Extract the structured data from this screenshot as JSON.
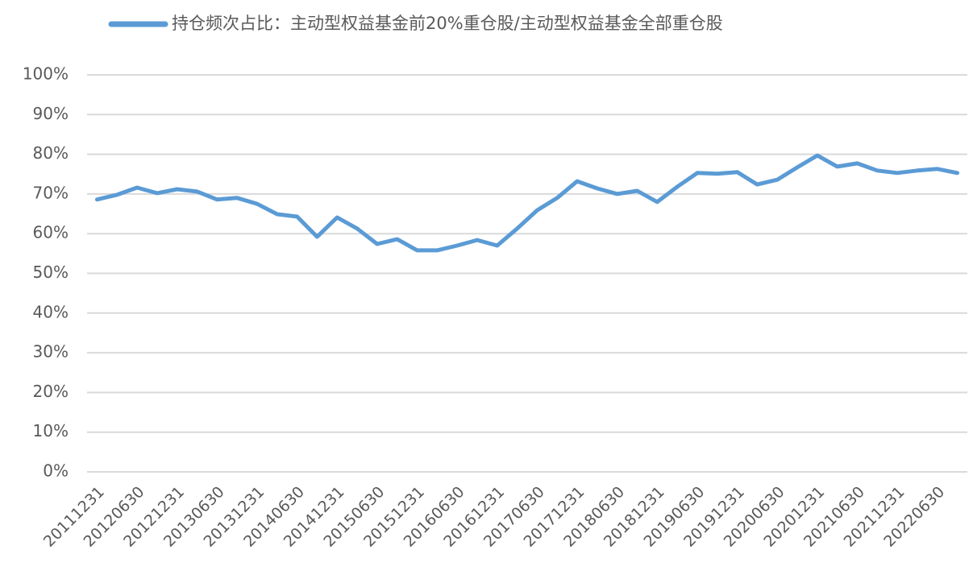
{
  "chart_data": {
    "type": "line",
    "categories": [
      "20111231",
      null,
      "20120630",
      null,
      "20121231",
      null,
      "20130630",
      null,
      "20131231",
      null,
      "20140630",
      null,
      "20141231",
      null,
      "20150630",
      null,
      "20151231",
      null,
      "20160630",
      null,
      "20161231",
      null,
      "20170630",
      null,
      "20171231",
      null,
      "20180630",
      null,
      "20181231",
      null,
      "20190630",
      null,
      "20191231",
      null,
      "20200630",
      null,
      "20201231",
      null,
      "20210630",
      null,
      "20211231",
      null,
      "20220630",
      null
    ],
    "series": [
      {
        "name": "持仓频次占比：主动型权益基金前20%重仓股/主动型权益基金全部重仓股",
        "color": "#5b9bd5",
        "values": [
          68.6,
          69.8,
          71.6,
          70.2,
          71.2,
          70.6,
          68.6,
          69.0,
          67.5,
          64.9,
          64.3,
          59.2,
          64.1,
          61.3,
          57.4,
          58.6,
          55.8,
          55.8,
          57.0,
          58.4,
          57.0,
          61.3,
          65.9,
          69.0,
          73.2,
          71.4,
          70.0,
          70.8,
          68.0,
          71.8,
          75.3,
          75.1,
          75.5,
          72.4,
          73.6,
          76.7,
          79.7,
          76.9,
          77.7,
          75.9,
          75.3,
          75.9,
          76.3,
          75.3
        ]
      }
    ],
    "ylim": [
      0,
      100
    ],
    "yticks": [
      {
        "value": 0,
        "label": "0%"
      },
      {
        "value": 10,
        "label": "10%"
      },
      {
        "value": 20,
        "label": "20%"
      },
      {
        "value": 30,
        "label": "30%"
      },
      {
        "value": 40,
        "label": "40%"
      },
      {
        "value": 50,
        "label": "50%"
      },
      {
        "value": 60,
        "label": "60%"
      },
      {
        "value": 70,
        "label": "70%"
      },
      {
        "value": 80,
        "label": "80%"
      },
      {
        "value": 90,
        "label": "90%"
      },
      {
        "value": 100,
        "label": "100%"
      }
    ],
    "grid": true,
    "legend": "top"
  }
}
